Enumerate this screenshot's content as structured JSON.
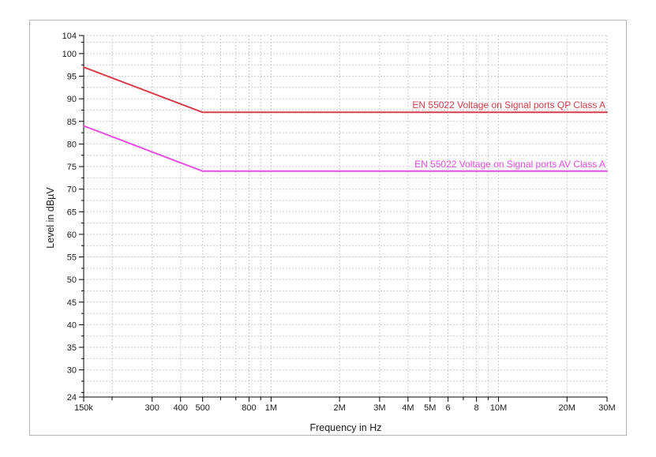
{
  "window": {
    "background": "#ffffff",
    "frame_border_color": "#b4b4b4"
  },
  "chart_data": {
    "type": "line",
    "title": "",
    "xlabel": "Frequency in Hz",
    "ylabel": "Level in dBµV",
    "x_scale": "log",
    "y_scale": "linear",
    "xlim": [
      150000,
      30000000
    ],
    "ylim": [
      24,
      104
    ],
    "grid": {
      "show": true,
      "style": "dashed",
      "color": "#cbcbcb",
      "h_step_db": 2.5
    },
    "axis_color": "#000000",
    "y_tick_labels": [
      104,
      100,
      95,
      90,
      85,
      80,
      75,
      70,
      65,
      60,
      55,
      50,
      45,
      40,
      35,
      30,
      24
    ],
    "x_ticks": [
      {
        "f": 150000,
        "label": "150k"
      },
      {
        "f": 300000,
        "label": "300"
      },
      {
        "f": 400000,
        "label": "400"
      },
      {
        "f": 500000,
        "label": "500"
      },
      {
        "f": 800000,
        "label": "800"
      },
      {
        "f": 1000000,
        "label": "1M"
      },
      {
        "f": 2000000,
        "label": "2M"
      },
      {
        "f": 3000000,
        "label": "3M"
      },
      {
        "f": 4000000,
        "label": "4M"
      },
      {
        "f": 5000000,
        "label": "5M"
      },
      {
        "f": 6000000,
        "label": "6"
      },
      {
        "f": 8000000,
        "label": "8"
      },
      {
        "f": 10000000,
        "label": "10M"
      },
      {
        "f": 20000000,
        "label": "20M"
      },
      {
        "f": 30000000,
        "label": "30M"
      }
    ],
    "x_minor_ticks": [
      200000,
      600000,
      700000,
      900000,
      7000000,
      9000000
    ],
    "legend_position": "labels-above-lines-right-aligned",
    "series": [
      {
        "name": "EN 55022 Voltage on Signal ports QP Class A",
        "color": "#d63d4b",
        "points": [
          [
            150000,
            97
          ],
          [
            500000,
            87
          ],
          [
            30000000,
            87
          ]
        ]
      },
      {
        "name": "EN 55022 Voltage on Signal ports AV Class A",
        "color": "#e44fe0",
        "points": [
          [
            150000,
            84
          ],
          [
            500000,
            74
          ],
          [
            30000000,
            74
          ]
        ]
      }
    ]
  }
}
